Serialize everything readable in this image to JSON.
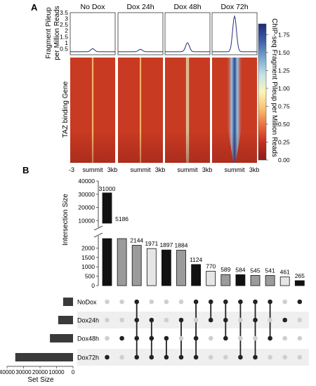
{
  "panels": {
    "a": "A",
    "b": "B"
  },
  "chart_data": [
    {
      "type": "heatmap",
      "panel": "A",
      "conditions": [
        "No Dox",
        "Dox 24h",
        "Dox 48h",
        "Dox 72h"
      ],
      "profile_ylabel_line1": "Fragment Pileup",
      "profile_ylabel_line2": "per Million Reads",
      "profile_yticks": [
        "3.5",
        "3",
        "2.5",
        "2",
        "1.5",
        "1",
        "0.5"
      ],
      "profile_ylim": [
        0,
        3.5
      ],
      "profile_peaks": [
        0.5,
        0.45,
        1.0,
        3.2
      ],
      "profile_baseline": 0.25,
      "heatmap_ylabel": "TAZ binding Gene",
      "xticks": [
        "-3",
        "summit",
        "3kb"
      ],
      "colorbar_label": "ChIP-seq Fragment Pileup per Million Reads",
      "colorbar_ticks": [
        "1.75",
        "1.50",
        "1.25",
        "1.00",
        "0.75",
        "0.50",
        "0.25",
        "0.00"
      ],
      "colorbar_range": [
        0,
        1.9
      ],
      "colorbar_colors": [
        "#1c2b7a",
        "#3f5ea7",
        "#79a8cc",
        "#c4e3e8",
        "#fbf6b5",
        "#f9c06a",
        "#ec6a3c",
        "#c42d1e",
        "#8e1c1c"
      ]
    },
    {
      "type": "bar",
      "panel": "B",
      "title": "",
      "ylabel": "Intersection Size",
      "yticks_upper": [
        "40000",
        "30000",
        "20000",
        "10000"
      ],
      "yticks_lower": [
        "2000",
        "1500",
        "1000",
        "500",
        "0"
      ],
      "ylim_upper": [
        8000,
        40000
      ],
      "ylim_lower": [
        0,
        2500
      ],
      "values": [
        31000,
        5186,
        2144,
        1971,
        1897,
        1884,
        1124,
        770,
        589,
        584,
        545,
        541,
        461,
        265
      ],
      "value_labels": [
        "31000",
        "5186",
        "2144",
        "1971",
        "1897",
        "1884",
        "1124",
        "770",
        "589",
        "584",
        "545",
        "541",
        "461",
        "265"
      ],
      "bar_colors": [
        "#111111",
        "#9b9b9b",
        "#9b9b9b",
        "#e6e6e6",
        "#111111",
        "#9b9b9b",
        "#111111",
        "#e6e6e6",
        "#9b9b9b",
        "#111111",
        "#9b9b9b",
        "#9b9b9b",
        "#e6e6e6",
        "#111111"
      ],
      "sets": [
        "NoDox",
        "Dox24h",
        "Dox48h",
        "Dox72h"
      ],
      "set_sizes": [
        6000,
        9000,
        14000,
        35000
      ],
      "set_size_label": "Set Size",
      "set_size_ticks": [
        "40000",
        "30000",
        "20000",
        "10000",
        "0"
      ],
      "set_size_xlim": [
        0,
        40000
      ],
      "memberships": [
        [
          3
        ],
        [
          2
        ],
        [
          0,
          1,
          2,
          3
        ],
        [
          1,
          2,
          3
        ],
        [
          2,
          3
        ],
        [
          1,
          3
        ],
        [
          0,
          2,
          3
        ],
        [
          0,
          1
        ],
        [
          0,
          1,
          2
        ],
        [
          0,
          3
        ],
        [
          0,
          1,
          3
        ],
        [
          0,
          2
        ],
        [
          1
        ],
        [
          0
        ]
      ]
    }
  ]
}
